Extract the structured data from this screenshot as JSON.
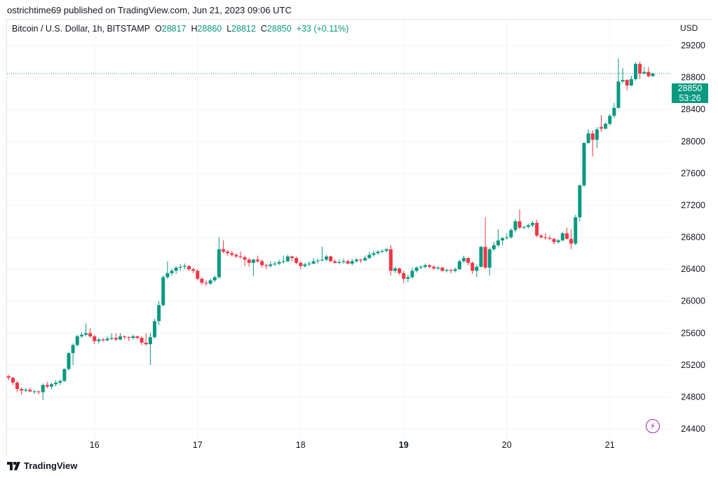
{
  "publisher": "ostrichtime69 published on TradingView.com, Jun 21, 2023 09:06 UTC",
  "legend": {
    "symbol": "Bitcoin / U.S. Dollar, 1h, BITSTAMP",
    "o_label": "O",
    "o": "28817",
    "h_label": "H",
    "h": "28860",
    "l_label": "L",
    "l": "28812",
    "c_label": "C",
    "c": "28850",
    "change": "+33 (+0.11%)"
  },
  "currency": "USD",
  "last_price": {
    "price": "28850",
    "countdown": "53:26"
  },
  "footer": {
    "brand": "TradingView"
  },
  "colors": {
    "up": "#089981",
    "down": "#f23645",
    "grid": "#f0f3fa",
    "price_label": "#089981",
    "alert": "#9c27b0"
  },
  "icons": {
    "logo": "tradingview-logo-icon",
    "alert": "lightning-icon"
  },
  "chart_data": {
    "type": "candlestick",
    "interval": "1h",
    "x_start": "2023-06-15 04:00",
    "ylim": [
      24300,
      29350
    ],
    "y_ticks": [
      "24400",
      "24800",
      "25200",
      "25600",
      "26000",
      "26400",
      "26800",
      "27200",
      "27600",
      "28000",
      "28400",
      "28800",
      "29200"
    ],
    "x_ticks": [
      {
        "label": "16",
        "bold": false,
        "hour": 20
      },
      {
        "label": "17",
        "bold": false,
        "hour": 44
      },
      {
        "label": "18",
        "bold": false,
        "hour": 68
      },
      {
        "label": "19",
        "bold": true,
        "hour": 92
      },
      {
        "label": "20",
        "bold": false,
        "hour": 116
      },
      {
        "label": "21",
        "bold": false,
        "hour": 140
      }
    ],
    "grid": true,
    "candles_ohlc": [
      [
        25060,
        25080,
        25010,
        25040
      ],
      [
        25040,
        25050,
        24950,
        24980
      ],
      [
        24980,
        25000,
        24860,
        24900
      ],
      [
        24900,
        24920,
        24830,
        24880
      ],
      [
        24880,
        24910,
        24860,
        24890
      ],
      [
        24890,
        24920,
        24860,
        24870
      ],
      [
        24870,
        24890,
        24840,
        24870
      ],
      [
        24870,
        24880,
        24830,
        24860
      ],
      [
        24860,
        24970,
        24760,
        24950
      ],
      [
        24950,
        24990,
        24910,
        24930
      ],
      [
        24930,
        24980,
        24900,
        24960
      ],
      [
        24960,
        25010,
        24930,
        24980
      ],
      [
        24980,
        25020,
        24950,
        25000
      ],
      [
        25000,
        25160,
        24990,
        25150
      ],
      [
        25150,
        25360,
        25130,
        25350
      ],
      [
        25350,
        25470,
        25200,
        25450
      ],
      [
        25450,
        25580,
        25430,
        25560
      ],
      [
        25560,
        25610,
        25540,
        25580
      ],
      [
        25580,
        25720,
        25560,
        25600
      ],
      [
        25600,
        25660,
        25540,
        25560
      ],
      [
        25560,
        25580,
        25460,
        25500
      ],
      [
        25500,
        25540,
        25470,
        25520
      ],
      [
        25520,
        25540,
        25490,
        25510
      ],
      [
        25510,
        25560,
        25500,
        25530
      ],
      [
        25530,
        25600,
        25510,
        25540
      ],
      [
        25540,
        25600,
        25500,
        25520
      ],
      [
        25520,
        25600,
        25510,
        25560
      ],
      [
        25560,
        25570,
        25520,
        25550
      ],
      [
        25550,
        25560,
        25500,
        25540
      ],
      [
        25540,
        25580,
        25520,
        25560
      ],
      [
        25560,
        25570,
        25520,
        25540
      ],
      [
        25540,
        25560,
        25450,
        25480
      ],
      [
        25480,
        25600,
        25440,
        25460
      ],
      [
        25460,
        25600,
        25200,
        25550
      ],
      [
        25550,
        25780,
        25530,
        25750
      ],
      [
        25750,
        26000,
        25700,
        25950
      ],
      [
        25950,
        26320,
        25930,
        26300
      ],
      [
        26300,
        26500,
        26280,
        26350
      ],
      [
        26350,
        26410,
        26320,
        26380
      ],
      [
        26380,
        26440,
        26340,
        26420
      ],
      [
        26420,
        26460,
        26380,
        26430
      ],
      [
        26430,
        26470,
        26400,
        26440
      ],
      [
        26440,
        26450,
        26380,
        26400
      ],
      [
        26400,
        26420,
        26350,
        26380
      ],
      [
        26380,
        26400,
        26260,
        26280
      ],
      [
        26280,
        26300,
        26200,
        26230
      ],
      [
        26230,
        26260,
        26190,
        26220
      ],
      [
        26220,
        26280,
        26200,
        26260
      ],
      [
        26260,
        26320,
        26240,
        26300
      ],
      [
        26300,
        26800,
        26280,
        26650
      ],
      [
        26650,
        26760,
        26600,
        26620
      ],
      [
        26620,
        26640,
        26570,
        26600
      ],
      [
        26600,
        26630,
        26560,
        26580
      ],
      [
        26580,
        26600,
        26540,
        26560
      ],
      [
        26560,
        26620,
        26530,
        26550
      ],
      [
        26550,
        26570,
        26440,
        26520
      ],
      [
        26520,
        26540,
        26430,
        26480
      ],
      [
        26480,
        26530,
        26310,
        26520
      ],
      [
        26520,
        26570,
        26480,
        26500
      ],
      [
        26500,
        26520,
        26420,
        26450
      ],
      [
        26450,
        26470,
        26400,
        26440
      ],
      [
        26440,
        26500,
        26420,
        26460
      ],
      [
        26460,
        26500,
        26440,
        26470
      ],
      [
        26470,
        26520,
        26450,
        26490
      ],
      [
        26490,
        26570,
        26470,
        26500
      ],
      [
        26500,
        26580,
        26490,
        26560
      ],
      [
        26560,
        26570,
        26500,
        26540
      ],
      [
        26540,
        26560,
        26460,
        26480
      ],
      [
        26480,
        26500,
        26400,
        26440
      ],
      [
        26440,
        26480,
        26420,
        26460
      ],
      [
        26460,
        26500,
        26440,
        26470
      ],
      [
        26470,
        26540,
        26460,
        26500
      ],
      [
        26500,
        26530,
        26470,
        26510
      ],
      [
        26510,
        26680,
        26500,
        26520
      ],
      [
        26520,
        26580,
        26500,
        26560
      ],
      [
        26560,
        26570,
        26490,
        26500
      ],
      [
        26500,
        26520,
        26470,
        26480
      ],
      [
        26480,
        26520,
        26460,
        26490
      ],
      [
        26490,
        26530,
        26470,
        26500
      ],
      [
        26500,
        26520,
        26460,
        26470
      ],
      [
        26470,
        26530,
        26450,
        26500
      ],
      [
        26500,
        26540,
        26480,
        26520
      ],
      [
        26520,
        26530,
        26480,
        26510
      ],
      [
        26510,
        26570,
        26500,
        26540
      ],
      [
        26540,
        26620,
        26530,
        26580
      ],
      [
        26580,
        26630,
        26560,
        26600
      ],
      [
        26600,
        26640,
        26580,
        26620
      ],
      [
        26620,
        26650,
        26600,
        26630
      ],
      [
        26630,
        26660,
        26610,
        26650
      ],
      [
        26650,
        26700,
        26320,
        26380
      ],
      [
        26380,
        26430,
        26350,
        26410
      ],
      [
        26410,
        26420,
        26330,
        26350
      ],
      [
        26350,
        26380,
        26230,
        26280
      ],
      [
        26280,
        26330,
        26240,
        26300
      ],
      [
        26300,
        26420,
        26280,
        26380
      ],
      [
        26380,
        26440,
        26360,
        26420
      ],
      [
        26420,
        26450,
        26400,
        26430
      ],
      [
        26430,
        26470,
        26410,
        26450
      ],
      [
        26450,
        26460,
        26410,
        26430
      ],
      [
        26430,
        26450,
        26390,
        26410
      ],
      [
        26410,
        26440,
        26390,
        26420
      ],
      [
        26420,
        26430,
        26370,
        26380
      ],
      [
        26380,
        26410,
        26360,
        26390
      ],
      [
        26390,
        26400,
        26350,
        26380
      ],
      [
        26380,
        26420,
        26360,
        26400
      ],
      [
        26400,
        26520,
        26390,
        26500
      ],
      [
        26500,
        26570,
        26480,
        26540
      ],
      [
        26540,
        26550,
        26450,
        26480
      ],
      [
        26480,
        26500,
        26340,
        26380
      ],
      [
        26380,
        26460,
        26300,
        26430
      ],
      [
        26430,
        26690,
        26420,
        26680
      ],
      [
        26680,
        27050,
        26400,
        26420
      ],
      [
        26420,
        26670,
        26320,
        26650
      ],
      [
        26650,
        26740,
        26630,
        26700
      ],
      [
        26700,
        26900,
        26680,
        26760
      ],
      [
        26760,
        26800,
        26700,
        26790
      ],
      [
        26790,
        26850,
        26770,
        26800
      ],
      [
        26800,
        26910,
        26780,
        26890
      ],
      [
        26890,
        27030,
        26860,
        27000
      ],
      [
        27000,
        27150,
        26900,
        26920
      ],
      [
        26920,
        26940,
        26900,
        26930
      ],
      [
        26930,
        26970,
        26910,
        26950
      ],
      [
        26950,
        27000,
        26930,
        26980
      ],
      [
        26980,
        27020,
        26800,
        26820
      ],
      [
        26820,
        26840,
        26780,
        26800
      ],
      [
        26800,
        26850,
        26770,
        26790
      ],
      [
        26790,
        26820,
        26760,
        26780
      ],
      [
        26780,
        26790,
        26710,
        26740
      ],
      [
        26740,
        26780,
        26720,
        26760
      ],
      [
        26760,
        26870,
        26750,
        26850
      ],
      [
        26850,
        26920,
        26770,
        26780
      ],
      [
        26780,
        26900,
        26650,
        26720
      ],
      [
        26720,
        27080,
        26700,
        27050
      ],
      [
        27050,
        27460,
        27000,
        27450
      ],
      [
        27450,
        27990,
        27430,
        27980
      ],
      [
        27980,
        28150,
        27970,
        28100
      ],
      [
        28100,
        28140,
        27810,
        28020
      ],
      [
        28020,
        28180,
        27920,
        28150
      ],
      [
        28180,
        28330,
        28120,
        28160
      ],
      [
        28160,
        28240,
        28150,
        28220
      ],
      [
        28220,
        28340,
        28200,
        28320
      ],
      [
        28320,
        28480,
        28290,
        28420
      ],
      [
        28420,
        29040,
        28410,
        28750
      ],
      [
        28750,
        28920,
        28730,
        28770
      ],
      [
        28770,
        28780,
        28640,
        28700
      ],
      [
        28700,
        28820,
        28690,
        28780
      ],
      [
        28780,
        28990,
        28760,
        28970
      ],
      [
        28970,
        29000,
        28780,
        28850
      ],
      [
        28850,
        28930,
        28840,
        28870
      ],
      [
        28870,
        28930,
        28800,
        28817
      ],
      [
        28817,
        28860,
        28812,
        28850
      ]
    ]
  }
}
